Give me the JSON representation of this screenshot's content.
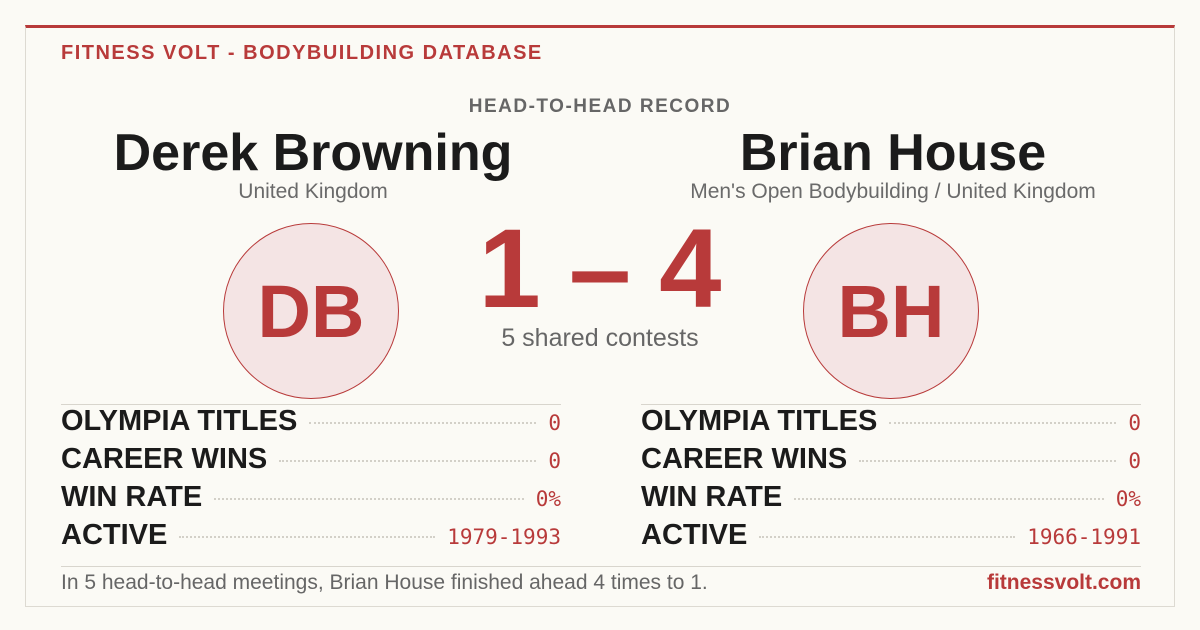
{
  "header": {
    "brand": "FITNESS VOLT - BODYBUILDING DATABASE"
  },
  "record": {
    "title": "HEAD-TO-HEAD RECORD",
    "score": {
      "left": 1,
      "separator": "–",
      "right": 4
    },
    "caption": "5 shared contests"
  },
  "competitors": [
    {
      "name": "Derek Browning",
      "subtitle": "United Kingdom",
      "initials": "DB",
      "stats": [
        {
          "label": "OLYMPIA TITLES",
          "value": "0"
        },
        {
          "label": "CAREER WINS",
          "value": "0"
        },
        {
          "label": "WIN RATE",
          "value": "0%"
        },
        {
          "label": "ACTIVE",
          "value": "1979-1993"
        }
      ]
    },
    {
      "name": "Brian House",
      "subtitle": "Men's Open Bodybuilding / United Kingdom",
      "initials": "BH",
      "stats": [
        {
          "label": "OLYMPIA TITLES",
          "value": "0"
        },
        {
          "label": "CAREER WINS",
          "value": "0"
        },
        {
          "label": "WIN RATE",
          "value": "0%"
        },
        {
          "label": "ACTIVE",
          "value": "1966-1991"
        }
      ]
    }
  ],
  "footer": {
    "summary": "In 5 head-to-head meetings, Brian House finished ahead 4 times to 1.",
    "site": "fitnessvolt.com"
  }
}
